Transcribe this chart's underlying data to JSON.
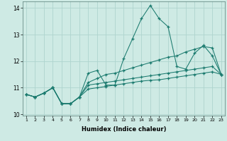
{
  "xlabel": "Humidex (Indice chaleur)",
  "x_values": [
    1,
    2,
    3,
    4,
    5,
    6,
    7,
    8,
    9,
    10,
    11,
    12,
    13,
    14,
    15,
    16,
    17,
    18,
    19,
    20,
    21,
    22,
    23
  ],
  "line1": [
    10.75,
    10.65,
    10.8,
    11.0,
    10.4,
    10.4,
    10.65,
    11.55,
    11.65,
    11.1,
    11.1,
    12.1,
    12.85,
    13.6,
    14.1,
    13.6,
    13.3,
    11.8,
    11.7,
    12.3,
    12.6,
    12.2,
    11.5
  ],
  "line2": [
    10.75,
    10.65,
    10.8,
    11.0,
    10.4,
    10.4,
    10.65,
    11.2,
    11.35,
    11.5,
    11.55,
    11.65,
    11.75,
    11.85,
    11.95,
    12.05,
    12.15,
    12.2,
    12.35,
    12.45,
    12.55,
    12.5,
    11.5
  ],
  "line3": [
    10.75,
    10.65,
    10.8,
    11.0,
    10.4,
    10.4,
    10.65,
    11.1,
    11.15,
    11.2,
    11.25,
    11.3,
    11.35,
    11.4,
    11.45,
    11.5,
    11.55,
    11.6,
    11.65,
    11.7,
    11.75,
    11.8,
    11.5
  ],
  "line4": [
    10.75,
    10.65,
    10.8,
    11.0,
    10.4,
    10.4,
    10.65,
    10.95,
    11.0,
    11.05,
    11.1,
    11.15,
    11.2,
    11.25,
    11.28,
    11.3,
    11.35,
    11.4,
    11.45,
    11.5,
    11.55,
    11.6,
    11.5
  ],
  "line_color": "#1a7a6e",
  "bg_color": "#ceeae4",
  "grid_color": "#aed4ce",
  "ylim": [
    9.95,
    14.25
  ],
  "xlim": [
    0.6,
    23.4
  ],
  "yticks": [
    10,
    11,
    12,
    13,
    14
  ],
  "figwidth": 3.2,
  "figheight": 2.0,
  "dpi": 100
}
